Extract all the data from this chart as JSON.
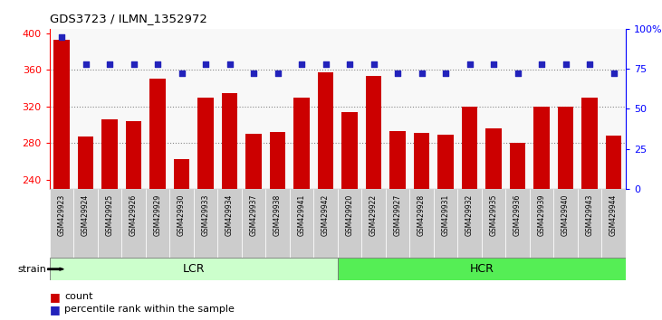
{
  "title": "GDS3723 / ILMN_1352972",
  "samples": [
    "GSM429923",
    "GSM429924",
    "GSM429925",
    "GSM429926",
    "GSM429929",
    "GSM429930",
    "GSM429933",
    "GSM429934",
    "GSM429937",
    "GSM429938",
    "GSM429941",
    "GSM429942",
    "GSM429920",
    "GSM429922",
    "GSM429927",
    "GSM429928",
    "GSM429931",
    "GSM429932",
    "GSM429935",
    "GSM429936",
    "GSM429939",
    "GSM429940",
    "GSM429943",
    "GSM429944"
  ],
  "counts": [
    393,
    287,
    306,
    304,
    350,
    262,
    330,
    335,
    290,
    292,
    330,
    357,
    314,
    353,
    293,
    291,
    289,
    320,
    296,
    280,
    320,
    320,
    330,
    288
  ],
  "percentile_ranks": [
    95,
    78,
    78,
    78,
    78,
    72,
    78,
    78,
    72,
    72,
    78,
    78,
    78,
    78,
    72,
    72,
    72,
    78,
    78,
    72,
    78,
    78,
    78,
    72
  ],
  "bar_color": "#cc0000",
  "dot_color": "#2222bb",
  "ylim_left": [
    230,
    405
  ],
  "ylim_right": [
    0,
    100
  ],
  "yticks_left": [
    240,
    280,
    320,
    360,
    400
  ],
  "yticks_right": [
    0,
    25,
    50,
    75,
    100
  ],
  "grid_ticks": [
    280,
    320,
    360
  ],
  "lcr_count": 12,
  "hcr_count": 12,
  "lcr_label": "LCR",
  "hcr_label": "HCR",
  "strain_label": "strain",
  "legend_count": "count",
  "legend_percentile": "percentile rank within the sample",
  "lcr_color": "#ccffcc",
  "hcr_color": "#55ee55",
  "tick_bg_color": "#cccccc",
  "plot_bg_color": "#f8f8f8"
}
